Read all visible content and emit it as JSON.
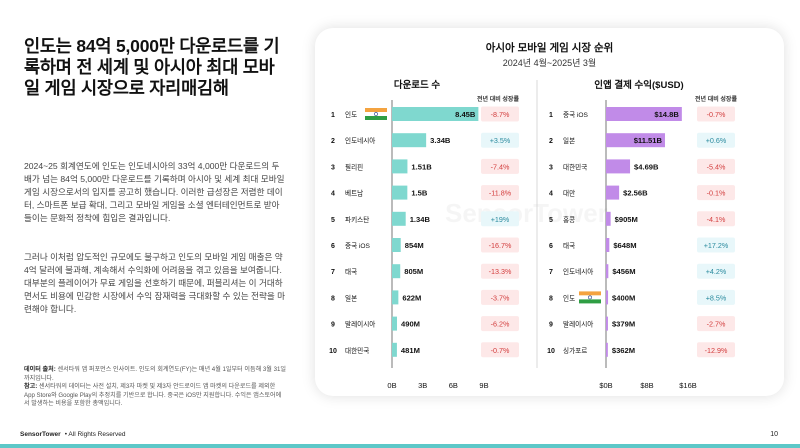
{
  "headline": "인도는 84억 5,000만 다운로드를 기록하며 전 세계 및 아시아 최대 모바일 게임 시장으로 자리매김해",
  "paragraph1": "2024~25 회계연도에 인도는 인도네시아의 33억 4,000만 다운로드의 두 배가 넘는 84억 5,000만 다운로드를 기록하며 아시아 및 세계 최대 모바일 게임 시장으로서의 입지를 공고히 했습니다. 이러한 급성장은 저렴한 데이터, 스마트폰 보급 확대, 그리고 모바일 게임을 소셜 엔터테인먼트로 받아들이는 문화적 정착에 힘입은 결과입니다.",
  "paragraph2": "그러나 이처럼 압도적인 규모에도 불구하고 인도의 모바일 게임 매출은 약 4억 달러에 불과해, 계속해서 수익화에 어려움을 겪고 있음을 보여줍니다. 대부분의 플레이어가 무료 게임을 선호하기 때문에, 퍼블리셔는 이 거대하면서도 비용에 민감한 시장에서 수익 잠재력을 극대화할 수 있는 전략을 마련해야 합니다.",
  "source": {
    "label1": "데이터 출처:",
    "text1": "센서타워 앱 퍼포먼스 인사이트. 인도의 회계연도(FY)는 매년 4월 1일부터 이듬해 3월 31일까지입니다.",
    "label2": "참고:",
    "text2": "센서타워의 데이터는 사전 설치, 제3자 마켓 및 제3자 안드로이드 앱 마켓의 다운로드를 제외한 App Store와 Google Play의 추정치를 기반으로 합니다. 중국은 iOS만 지원합니다. 수익은 앱스토어에서 발생하는 비용을 포함한 총액입니다."
  },
  "footer": {
    "brand": "SensorTower",
    "rights": "• All Rights Reserved",
    "page": "10"
  },
  "watermark": "SensorTower",
  "colors": {
    "downloads_bar": "#7fd8cf",
    "revenue_bar": "#c18be8",
    "positive": "#2a8a9e",
    "negative": "#d23c3c",
    "positive_bg": "#e8f7fa",
    "negative_bg": "#fde8e8",
    "footer": "#5cc8c8"
  },
  "chart_data": [
    {
      "type": "bar",
      "orientation": "horizontal",
      "title": "아시아 모바일 게임 시장 순위",
      "subtitle": "2024년 4월~2025년 3월",
      "panel_title": "다운로드 수",
      "growth_header": "전년 대비 성장률",
      "ranks": [
        1,
        2,
        3,
        4,
        5,
        6,
        7,
        8,
        9,
        10
      ],
      "categories": [
        "인도",
        "인도네시아",
        "필리핀",
        "베트남",
        "파키스탄",
        "중국 iOS",
        "태국",
        "일본",
        "말레이시아",
        "대한민국"
      ],
      "flags": [
        "india-flag-icon",
        null,
        null,
        null,
        null,
        null,
        null,
        null,
        null,
        null
      ],
      "values": [
        8.45,
        3.34,
        1.51,
        1.5,
        1.34,
        0.854,
        0.805,
        0.622,
        0.49,
        0.481
      ],
      "value_labels": [
        "8.45B",
        "3.34B",
        "1.51B",
        "1.5B",
        "1.34B",
        "854M",
        "805M",
        "622M",
        "490M",
        "481M"
      ],
      "growth": [
        "-8.7%",
        "+3.5%",
        "-7.4%",
        "-11.8%",
        "+19%",
        "-16.7%",
        "-13.3%",
        "-3.7%",
        "-6.2%",
        "-0.7%"
      ],
      "xlim": [
        0,
        9
      ],
      "x_ticks": [
        "0B",
        "3B",
        "6B",
        "9B"
      ]
    },
    {
      "type": "bar",
      "orientation": "horizontal",
      "panel_title": "인앱 결제 수익($USD)",
      "growth_header": "전년 대비 성장률",
      "ranks": [
        1,
        2,
        3,
        4,
        5,
        6,
        7,
        8,
        9,
        10
      ],
      "categories": [
        "중국 iOS",
        "일본",
        "대한민국",
        "대만",
        "홍콩",
        "태국",
        "인도네시아",
        "인도",
        "말레이시아",
        "싱가포르"
      ],
      "flags": [
        null,
        null,
        null,
        null,
        null,
        null,
        null,
        "india-flag-icon",
        null,
        null
      ],
      "values": [
        14.8,
        11.51,
        4.69,
        2.56,
        0.905,
        0.648,
        0.456,
        0.4,
        0.379,
        0.362
      ],
      "value_labels": [
        "$14.8B",
        "$11.51B",
        "$4.69B",
        "$2.56B",
        "$905M",
        "$648M",
        "$456M",
        "$400M",
        "$379M",
        "$362M"
      ],
      "growth": [
        "-0.7%",
        "+0.6%",
        "-5.4%",
        "-0.1%",
        "-4.1%",
        "+17.2%",
        "+4.2%",
        "+8.5%",
        "-2.7%",
        "-12.9%"
      ],
      "xlim": [
        0,
        16
      ],
      "x_ticks": [
        "$0B",
        "$8B",
        "$16B"
      ]
    }
  ]
}
